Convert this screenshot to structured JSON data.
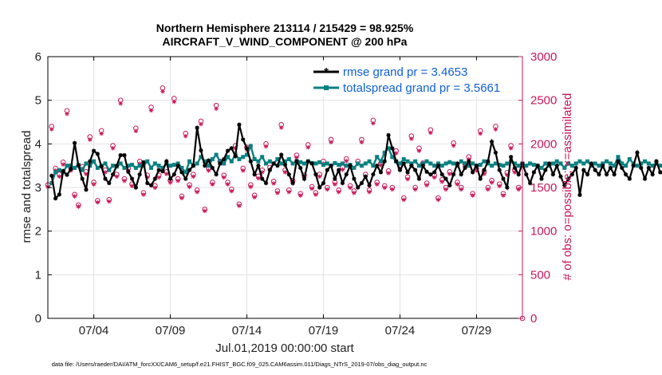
{
  "chart_data": {
    "type": "line",
    "title_line1": "Northern Hemisphere 213114 / 215429 = 98.925%",
    "title_line2": "AIRCRAFT_V_WIND_COMPONENT @ 200 hPa",
    "xlabel": "Jul.01,2019 00:00:00 start",
    "ylabel_left": "rmse and totalspread",
    "ylabel_right": "# of obs: o=possible; ×=assimilated",
    "x_ticks": [
      "07/04",
      "07/09",
      "07/14",
      "07/19",
      "07/24",
      "07/29"
    ],
    "x_tick_days": [
      4,
      9,
      14,
      19,
      24,
      29
    ],
    "x_range_days": [
      1.0,
      32.0
    ],
    "y_left_range": [
      0,
      6
    ],
    "y_left_ticks": [
      0,
      1,
      2,
      3,
      4,
      5,
      6
    ],
    "y_right_range": [
      0,
      3000
    ],
    "y_right_ticks": [
      0,
      500,
      1000,
      1500,
      2000,
      2500,
      3000
    ],
    "grid": true,
    "legend_position": "top-right",
    "colors": {
      "rmse": "#000000",
      "totalspread": "#0a8080",
      "obs": "#c8175a",
      "legend_text": "#1060d8"
    },
    "series": [
      {
        "name": "rmse grand pr = 3.4653",
        "start_day": 1.25,
        "step_days": 0.25,
        "values": [
          3.27,
          2.75,
          2.84,
          3.38,
          3.29,
          3.42,
          4.02,
          3.5,
          3.2,
          2.95,
          3.6,
          3.84,
          3.77,
          3.48,
          3.2,
          3.1,
          3.3,
          3.5,
          3.74,
          3.74,
          3.36,
          3.2,
          3.0,
          3.3,
          3.58,
          3.1,
          3.05,
          3.2,
          3.4,
          3.37,
          3.6,
          3.2,
          3.3,
          3.5,
          3.35,
          3.2,
          3.4,
          3.5,
          4.37,
          3.85,
          3.5,
          3.62,
          3.45,
          3.3,
          3.55,
          3.65,
          3.84,
          3.9,
          3.72,
          4.44,
          4.1,
          3.9,
          3.6,
          3.3,
          3.5,
          3.2,
          3.1,
          3.4,
          3.55,
          3.5,
          3.75,
          3.52,
          3.3,
          3.1,
          3.6,
          3.45,
          3.2,
          3.6,
          3.55,
          3.3,
          3.0,
          3.1,
          3.4,
          3.5,
          3.2,
          3.4,
          3.1,
          3.3,
          3.5,
          3.2,
          3.0,
          3.1,
          3.25,
          3.05,
          3.3,
          3.5,
          3.35,
          3.6,
          4.2,
          3.9,
          3.6,
          3.4,
          3.55,
          3.35,
          3.5,
          3.4,
          3.2,
          3.5,
          3.36,
          3.3,
          3.35,
          3.5,
          3.3,
          3.2,
          3.05,
          3.3,
          3.55,
          3.3,
          3.45,
          3.6,
          3.35,
          3.5,
          3.2,
          3.4,
          3.6,
          4.05,
          3.8,
          3.4,
          3.2,
          3.0,
          3.7,
          3.45,
          3.3,
          3.55,
          3.3,
          3.1,
          3.35,
          3.5,
          3.2,
          3.4,
          3.55,
          3.3,
          3.5,
          3.25,
          3.05,
          3.2,
          3.3,
          3.45,
          2.83,
          3.4,
          3.3,
          3.55,
          3.4,
          3.3,
          3.5,
          3.3,
          3.45,
          3.3,
          3.6,
          3.45,
          3.3,
          3.2,
          3.5,
          3.8,
          3.45,
          3.2,
          3.45,
          3.3,
          3.6,
          3.35,
          3.3,
          3.5,
          3.2,
          3.4,
          3.3,
          3.15,
          3.35,
          3.5,
          3.3,
          3.4,
          3.2,
          3.05,
          3.02
        ]
      },
      {
        "name": "totalspread grand pr = 3.5661",
        "start_day": 1.25,
        "step_days": 0.25,
        "values": [
          3.1,
          3.35,
          3.4,
          3.35,
          3.5,
          3.5,
          3.45,
          3.52,
          3.4,
          3.55,
          3.5,
          3.6,
          3.45,
          3.5,
          3.55,
          3.4,
          3.5,
          3.48,
          3.55,
          3.45,
          3.5,
          3.52,
          3.45,
          3.5,
          3.5,
          3.6,
          3.45,
          3.55,
          3.5,
          3.45,
          3.55,
          3.5,
          3.52,
          3.55,
          3.45,
          3.35,
          3.6,
          3.5,
          3.55,
          3.7,
          3.6,
          3.5,
          3.65,
          3.75,
          3.6,
          3.55,
          3.7,
          3.6,
          3.75,
          3.65,
          3.7,
          3.75,
          3.95,
          3.65,
          3.6,
          3.7,
          3.55,
          3.6,
          3.55,
          3.65,
          3.55,
          3.6,
          3.65,
          3.55,
          3.6,
          3.58,
          3.55,
          3.6,
          3.56,
          3.55,
          3.58,
          3.52,
          3.55,
          3.5,
          3.56,
          3.52,
          3.55,
          3.5,
          3.52,
          3.45,
          3.55,
          3.5,
          3.55,
          3.6,
          3.5,
          3.7,
          3.6,
          3.8,
          3.9,
          3.7,
          3.6,
          3.55,
          3.65,
          3.6,
          3.55,
          3.6,
          3.5,
          3.55,
          3.6,
          3.55,
          3.5,
          3.55,
          3.5,
          3.55,
          3.58,
          3.55,
          3.5,
          3.6,
          3.55,
          3.5,
          3.55,
          3.5,
          3.52,
          3.6,
          3.55,
          3.5,
          3.55,
          3.52,
          3.5,
          3.55,
          3.6,
          3.55,
          3.5,
          3.55,
          3.5,
          3.55,
          3.52,
          3.5,
          3.45,
          3.55,
          3.5,
          3.55,
          3.6,
          3.55,
          3.45,
          3.55,
          3.5,
          3.55,
          3.6,
          3.55,
          3.6,
          3.5,
          3.55,
          3.5,
          3.55,
          3.6,
          3.55,
          3.5,
          3.7,
          3.55,
          3.5,
          3.65,
          3.55,
          3.5,
          3.55,
          3.6,
          3.55,
          3.5,
          3.55,
          3.5,
          3.55,
          3.6,
          3.55,
          3.5,
          3.6,
          3.55,
          3.5,
          3.45,
          3.5,
          3.45,
          3.5,
          3.45
        ]
      }
    ],
    "obs": {
      "name_possible": "o=possible",
      "name_assimilated": "×=assimilated",
      "points_day": [
        1.0,
        1.25,
        1.5,
        1.75,
        2.0,
        2.25,
        2.5,
        2.75,
        3.0,
        3.25,
        3.5,
        3.75,
        4.0,
        4.25,
        4.5,
        4.75,
        5.0,
        5.25,
        5.5,
        5.75,
        6.0,
        6.25,
        6.5,
        6.75,
        7.0,
        7.25,
        7.5,
        7.75,
        8.0,
        8.25,
        8.5,
        8.75,
        9.0,
        9.25,
        9.5,
        9.75,
        10.0,
        10.25,
        10.5,
        10.75,
        11.0,
        11.25,
        11.5,
        11.75,
        12.0,
        12.25,
        12.5,
        12.75,
        13.0,
        13.25,
        13.5,
        13.75,
        14.0,
        14.25,
        14.5,
        14.75,
        15.0,
        15.25,
        15.5,
        15.75,
        16.0,
        16.25,
        16.5,
        16.75,
        17.0,
        17.25,
        17.5,
        17.75,
        18.0,
        18.25,
        18.5,
        18.75,
        19.0,
        19.25,
        19.5,
        19.75,
        20.0,
        20.25,
        20.5,
        20.75,
        21.0,
        21.25,
        21.5,
        21.75,
        22.0,
        22.25,
        22.5,
        22.75,
        23.0,
        23.25,
        23.5,
        23.75,
        24.0,
        24.25,
        24.5,
        24.75,
        25.0,
        25.25,
        25.5,
        25.75,
        26.0,
        26.25,
        26.5,
        26.75,
        27.0,
        27.25,
        27.5,
        27.75,
        28.0,
        28.25,
        28.5,
        28.75,
        29.0,
        29.25,
        29.5,
        29.75,
        30.0,
        30.25,
        30.5,
        30.75,
        31.0,
        31.25,
        31.5,
        31.75
      ],
      "possible": [
        1530,
        2200,
        1720,
        1650,
        1790,
        2380,
        1720,
        1420,
        1300,
        1740,
        1680,
        2080,
        1560,
        1350,
        2150,
        1700,
        1360,
        1980,
        1650,
        2500,
        1600,
        1720,
        1540,
        2180,
        1800,
        1440,
        1640,
        2420,
        1520,
        1640,
        2640,
        1680,
        1580,
        2520,
        1600,
        1400,
        2120,
        1530,
        1650,
        1470,
        2260,
        1250,
        1720,
        1560,
        2440,
        1800,
        1640,
        1560,
        1480,
        1980,
        1310,
        1720,
        1960,
        1530,
        1410,
        1630,
        1700,
        2000,
        1730,
        1570,
        1460,
        2220,
        1700,
        1470,
        1580,
        1870,
        1430,
        1640,
        1990,
        1510,
        1440,
        1650,
        1800,
        1500,
        2050,
        1560,
        1470,
        1730,
        1830,
        1520,
        1460,
        1800,
        2050,
        1650,
        1470,
        2270,
        1560,
        1780,
        1520,
        1690,
        1500,
        1920,
        1740,
        1380,
        1620,
        2090,
        1500,
        1950,
        1780,
        1550,
        2160,
        1640,
        1380,
        1590,
        1500,
        1680,
        2010,
        1560,
        1500,
        1770,
        1850,
        1430,
        1720,
        2150,
        1680,
        1500,
        1580,
        2200,
        1540,
        1430,
        1670,
        1980,
        1700,
        1500,
        1720,
        2000
      ]
    },
    "footer": "data file: /Users/raeder/DAI/ATM_forcXX/CAM6_setup/f.e21.FHIST_BGC.f09_025.CAM6assim.011/Diags_NTrS_2019-07/obs_diag_output.nc"
  }
}
